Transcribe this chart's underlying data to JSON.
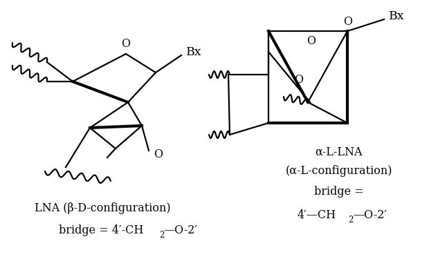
{
  "bg_color": "#ffffff",
  "text_color": "#000000",
  "lna_label1": "LNA (β-D-configuration)",
  "alna_label1": "α-L-LNA",
  "alna_label2": "(α-L-configuration)",
  "alna_label3": "bridge =",
  "bx_label": "Bx",
  "o_label": "O",
  "figsize": [
    6.2,
    3.88
  ],
  "dpi": 100
}
